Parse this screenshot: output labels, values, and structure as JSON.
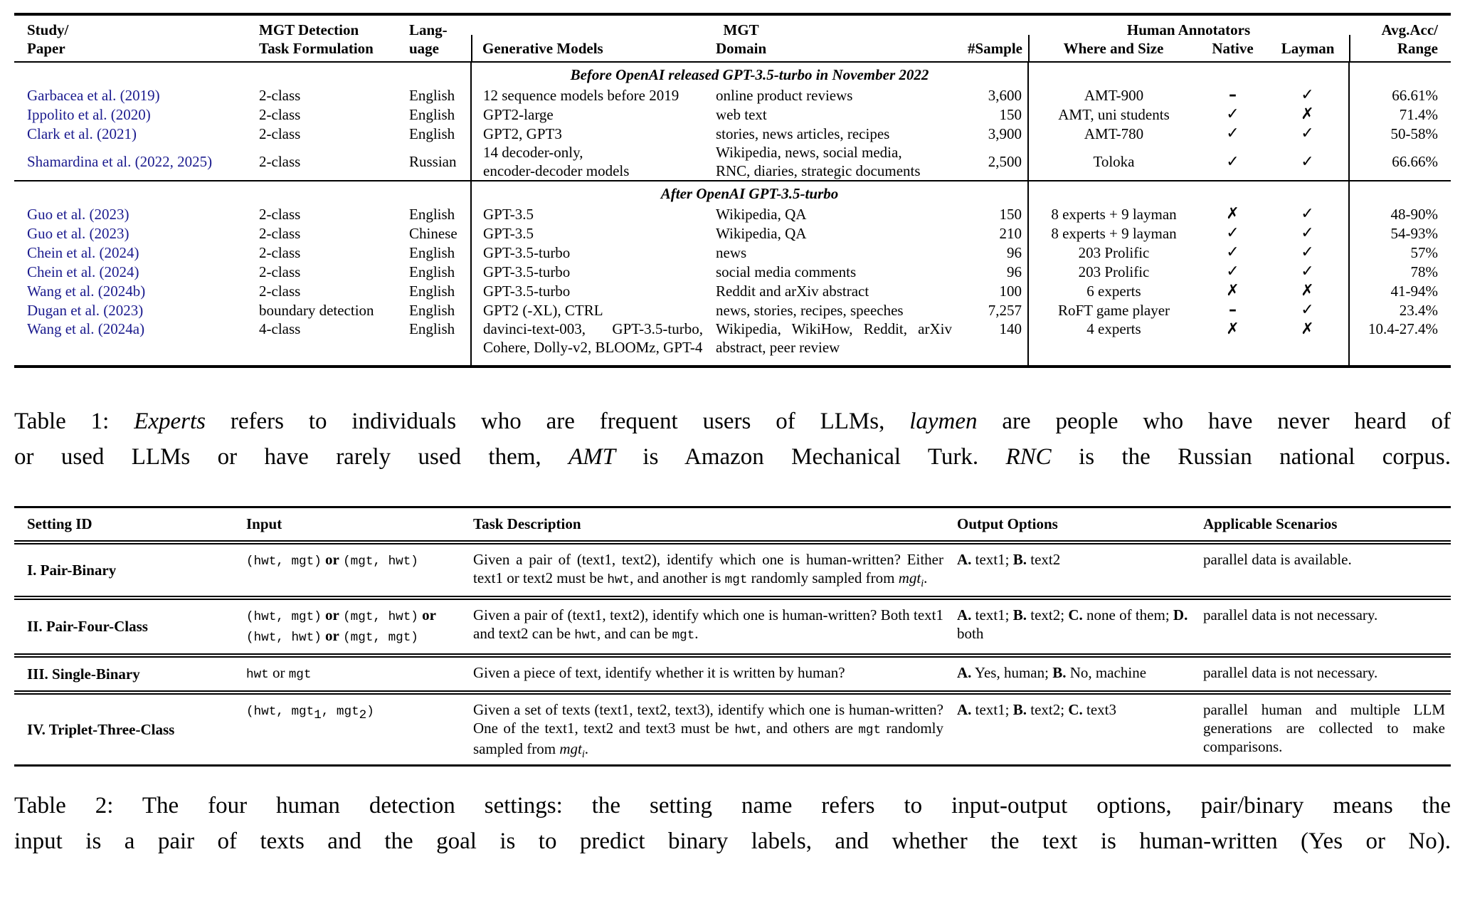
{
  "colors": {
    "citation_link": "#1b1b8e",
    "text": "#000000",
    "rule": "#000000"
  },
  "table1": {
    "header": {
      "study_l1": "Study/",
      "study_l2": "Paper",
      "task_l1": "MGT Detection",
      "task_l2": "Task Formulation",
      "lang_l1": "Lang-",
      "lang_l2": "uage",
      "models": "Generative Models",
      "domain_l1": "MGT",
      "domain_l2": "Domain",
      "sample": "#Sample",
      "annotators": "Human Annotators",
      "where": "Where and Size",
      "native": "Native",
      "layman": "Layman",
      "acc_l1": "Avg.Acc/",
      "acc_l2": "Range"
    },
    "marks": {
      "check": "✓",
      "cross": "✗",
      "dash": "–"
    },
    "sections": [
      {
        "title": "Before OpenAI released GPT-3.5-turbo in November 2022",
        "rows": [
          {
            "study": "Garbacea et al. (2019)",
            "task": "2-class",
            "lang": "English",
            "models": "12 sequence models before 2019",
            "domain": "online product reviews",
            "sample": "3,600",
            "where": "AMT-900",
            "native": "dash",
            "layman": "check",
            "acc": "66.61%"
          },
          {
            "study": "Ippolito et al. (2020)",
            "task": "2-class",
            "lang": "English",
            "models": "GPT2-large",
            "domain": "web text",
            "sample": "150",
            "where": "AMT, uni students",
            "native": "check",
            "layman": "cross",
            "acc": "71.4%"
          },
          {
            "study": "Clark et al. (2021)",
            "task": "2-class",
            "lang": "English",
            "models": "GPT2, GPT3",
            "domain": "stories, news articles, recipes",
            "sample": "3,900",
            "where": "AMT-780",
            "native": "check",
            "layman": "check",
            "acc": "50-58%"
          },
          {
            "study": "Shamardina et al. (2022, 2025)",
            "task": "2-class",
            "lang": "Russian",
            "models": "14 decoder-only,\nencoder-decoder models",
            "domain": "Wikipedia, news, social media,\nRNC, diaries, strategic documents",
            "sample": "2,500",
            "where": "Toloka",
            "native": "check",
            "layman": "check",
            "acc": "66.66%"
          }
        ]
      },
      {
        "title": "After OpenAI GPT-3.5-turbo",
        "rows": [
          {
            "study": "Guo et al. (2023)",
            "task": "2-class",
            "lang": "English",
            "models": "GPT-3.5",
            "domain": "Wikipedia, QA",
            "sample": "150",
            "where": "8 experts + 9 layman",
            "native": "cross",
            "layman": "check",
            "acc": "48-90%"
          },
          {
            "study": "Guo et al. (2023)",
            "task": "2-class",
            "lang": "Chinese",
            "models": "GPT-3.5",
            "domain": "Wikipedia, QA",
            "sample": "210",
            "where": "8 experts + 9 layman",
            "native": "check",
            "layman": "check",
            "acc": "54-93%"
          },
          {
            "study": "Chein et al. (2024)",
            "task": "2-class",
            "lang": "English",
            "models": "GPT-3.5-turbo",
            "domain": "news",
            "sample": "96",
            "where": "203 Prolific",
            "native": "check",
            "layman": "check",
            "acc": "57%"
          },
          {
            "study": "Chein et al. (2024)",
            "task": "2-class",
            "lang": "English",
            "models": "GPT-3.5-turbo",
            "domain": "social media comments",
            "sample": "96",
            "where": "203 Prolific",
            "native": "check",
            "layman": "check",
            "acc": "78%"
          },
          {
            "study": "Wang et al. (2024b)",
            "task": "2-class",
            "lang": "English",
            "models": "GPT-3.5-turbo",
            "domain": "Reddit and arXiv abstract",
            "sample": "100",
            "where": "6 experts",
            "native": "cross",
            "layman": "cross",
            "acc": "41-94%"
          },
          {
            "study": "Dugan et al. (2023)",
            "task": "boundary detection",
            "lang": "English",
            "models": "GPT2 (-XL), CTRL",
            "domain": "news, stories, recipes, speeches",
            "sample": "7,257",
            "where": "RoFT game player",
            "native": "dash",
            "layman": "check",
            "acc": "23.4%"
          },
          {
            "study": "Wang et al. (2024a)",
            "task": "4-class",
            "lang": "English",
            "models": "davinci-text-003, GPT-3.5-turbo, Cohere, Dolly-v2, BLOOMz, GPT-4",
            "domain": "Wikipedia, WikiHow, Reddit, arXiv abstract, peer review",
            "sample": "140",
            "where": "4 experts",
            "native": "cross",
            "layman": "cross",
            "acc": "10.4-27.4%",
            "j": true,
            "va": "top"
          }
        ]
      }
    ]
  },
  "caption1": {
    "lines": [
      [
        {
          "t": "Table 1: "
        },
        {
          "t": "Experts",
          "f": "i"
        },
        {
          "t": " refers to individuals who are frequent users of LLMs, "
        },
        {
          "t": "laymen",
          "f": "i"
        },
        {
          "t": " are people who have never heard of"
        }
      ],
      [
        {
          "t": "or used LLMs or have rarely used them, "
        },
        {
          "t": "AMT",
          "f": "i"
        },
        {
          "t": " is Amazon Mechanical Turk. "
        },
        {
          "t": "RNC",
          "f": "i"
        },
        {
          "t": " is the Russian national corpus."
        }
      ]
    ]
  },
  "table2": {
    "headers": [
      "Setting ID",
      "Input",
      "Task Description",
      "Output Options",
      "Applicable Scenarios"
    ],
    "rows": [
      {
        "id": "I. Pair-Binary",
        "input": [
          {
            "t": "(hwt, mgt)",
            "f": "m"
          },
          {
            "t": " "
          },
          {
            "t": "or",
            "f": "b"
          },
          {
            "t": " "
          },
          {
            "t": "(mgt, hwt)",
            "f": "m"
          }
        ],
        "task": [
          {
            "t": "Given a pair of (text1, text2), identify which one is human-written? Either text1 or text2 must be "
          },
          {
            "t": "hwt",
            "f": "m"
          },
          {
            "t": ", and another is "
          },
          {
            "t": "mgt",
            "f": "m"
          },
          {
            "t": " randomly sampled from "
          },
          {
            "t": "mgt",
            "f": "i"
          },
          {
            "t": "i",
            "f": "i",
            "sub": true
          },
          {
            "t": "."
          }
        ],
        "output": [
          {
            "t": "A.",
            "f": "b"
          },
          {
            "t": " text1; "
          },
          {
            "t": "B.",
            "f": "b"
          },
          {
            "t": " text2"
          }
        ],
        "scen": [
          {
            "t": "parallel data is available."
          }
        ]
      },
      {
        "id": "II. Pair-Four-Class",
        "input": [
          {
            "t": "(hwt, mgt)",
            "f": "m"
          },
          {
            "t": " "
          },
          {
            "t": "or",
            "f": "b"
          },
          {
            "t": " "
          },
          {
            "t": "(mgt, hwt)",
            "f": "m"
          },
          {
            "t": " "
          },
          {
            "t": "or",
            "f": "b"
          },
          {
            "br": true
          },
          {
            "t": "(hwt, hwt)",
            "f": "m"
          },
          {
            "t": " "
          },
          {
            "t": "or",
            "f": "b"
          },
          {
            "t": " "
          },
          {
            "t": "(mgt, mgt)",
            "f": "m"
          }
        ],
        "task": [
          {
            "t": "Given a pair of (text1, text2), identify which one is human-written? Both text1 and text2 can be "
          },
          {
            "t": "hwt",
            "f": "m"
          },
          {
            "t": ", and can be "
          },
          {
            "t": "mgt",
            "f": "m"
          },
          {
            "t": "."
          }
        ],
        "output": [
          {
            "t": "A.",
            "f": "b"
          },
          {
            "t": " text1; "
          },
          {
            "t": "B.",
            "f": "b"
          },
          {
            "t": " text2; "
          },
          {
            "t": "C.",
            "f": "b"
          },
          {
            "t": " none of them; "
          },
          {
            "t": "D.",
            "f": "b"
          },
          {
            "t": " both"
          }
        ],
        "scen": [
          {
            "t": "parallel data is not necessary."
          }
        ]
      },
      {
        "id": "III. Single-Binary",
        "input": [
          {
            "t": "hwt",
            "f": "m"
          },
          {
            "t": " or "
          },
          {
            "t": "mgt",
            "f": "m"
          }
        ],
        "task": [
          {
            "t": "Given a piece of text, identify whether it is written by human?"
          }
        ],
        "output": [
          {
            "t": "A.",
            "f": "b"
          },
          {
            "t": " Yes, human; "
          },
          {
            "t": "B.",
            "f": "b"
          },
          {
            "t": " No, machine"
          }
        ],
        "scen": [
          {
            "t": "parallel data is not necessary."
          }
        ]
      },
      {
        "id": "IV. Triplet-Three-Class",
        "input": [
          {
            "t": "(hwt, mgt",
            "f": "m"
          },
          {
            "t": "1",
            "f": "m",
            "sub": true
          },
          {
            "t": ", mgt",
            "f": "m"
          },
          {
            "t": "2",
            "f": "m",
            "sub": true
          },
          {
            "t": ")",
            "f": "m"
          }
        ],
        "task": [
          {
            "t": "Given a set of texts (text1, text2, text3), identify which one is human-written? One of the text1, text2 and text3 must be "
          },
          {
            "t": "hwt",
            "f": "m"
          },
          {
            "t": ", and others are "
          },
          {
            "t": "mgt",
            "f": "m"
          },
          {
            "t": " randomly sampled from "
          },
          {
            "t": "mgt",
            "f": "i"
          },
          {
            "t": "i",
            "f": "i",
            "sub": true
          },
          {
            "t": "."
          }
        ],
        "output": [
          {
            "t": "A.",
            "f": "b"
          },
          {
            "t": " text1; "
          },
          {
            "t": "B.",
            "f": "b"
          },
          {
            "t": " text2; "
          },
          {
            "t": "C.",
            "f": "b"
          },
          {
            "t": " text3"
          }
        ],
        "scen": [
          {
            "t": "parallel human and multiple LLM generations are collected to make comparisons."
          }
        ]
      }
    ]
  },
  "caption2": {
    "lines": [
      [
        {
          "t": "Table 2: The four human detection settings: the setting name refers to input-output options, pair/binary means the"
        }
      ],
      [
        {
          "t": "input is a pair of texts and the goal is to predict binary labels, and whether the text is human-written (Yes or No)."
        }
      ]
    ]
  }
}
